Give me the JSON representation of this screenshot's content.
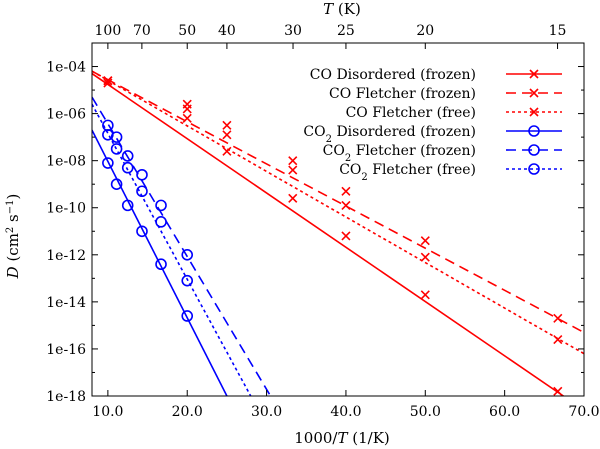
{
  "chart_data": {
    "type": "line",
    "xlabel": "1000/T (1/K)",
    "ylabel": "D (cm2 s-1)",
    "top_axis_label": "T (K)",
    "x_ticks": [
      "10.0",
      "20.0",
      "30.0",
      "40.0",
      "50.0",
      "60.0",
      "70.0"
    ],
    "x_tick_values": [
      10,
      20,
      30,
      40,
      50,
      60,
      70
    ],
    "top_ticks": [
      "100",
      "70",
      "50",
      "40",
      "30",
      "25",
      "20",
      "15"
    ],
    "top_tick_values": [
      100,
      70,
      50,
      40,
      30,
      25,
      20,
      15
    ],
    "y_ticks": [
      "1e-04",
      "1e-06",
      "1e-08",
      "1e-10",
      "1e-12",
      "1e-14",
      "1e-16",
      "1e-18"
    ],
    "y_tick_exponents": [
      -4,
      -6,
      -8,
      -10,
      -12,
      -14,
      -16,
      -18
    ],
    "xlim": [
      8,
      70
    ],
    "ylim_log10": [
      -18,
      -3
    ],
    "series": [
      {
        "name": "CO  Disordered (frozen)",
        "prefix": "CO",
        "sub": "",
        "rest": "  Disordered (frozen)",
        "color": "#ff0000",
        "marker": "x",
        "dash": "",
        "points": [
          [
            10,
            -4.7
          ],
          [
            20,
            -6.2
          ],
          [
            25,
            -7.6
          ],
          [
            33.3,
            -9.6
          ],
          [
            40,
            -11.2
          ],
          [
            50,
            -13.7
          ],
          [
            66.7,
            -17.8
          ]
        ]
      },
      {
        "name": "CO  Fletcher (frozen)",
        "prefix": "CO",
        "sub": "",
        "rest": "  Fletcher (frozen)",
        "color": "#ff0000",
        "marker": "x",
        "dash": "10,6",
        "points": [
          [
            10,
            -4.6
          ],
          [
            20,
            -5.6
          ],
          [
            25,
            -6.5
          ],
          [
            33.3,
            -8.0
          ],
          [
            40,
            -9.3
          ],
          [
            50,
            -11.4
          ],
          [
            66.7,
            -14.7
          ]
        ]
      },
      {
        "name": "CO  Fletcher (free)",
        "prefix": "CO",
        "sub": "",
        "rest": "  Fletcher (free)",
        "color": "#ff0000",
        "marker": "x",
        "dash": "3,3",
        "points": [
          [
            10,
            -4.6
          ],
          [
            20,
            -5.8
          ],
          [
            25,
            -6.9
          ],
          [
            33.3,
            -8.4
          ],
          [
            40,
            -9.9
          ],
          [
            50,
            -12.1
          ],
          [
            66.7,
            -15.6
          ]
        ]
      },
      {
        "name": "CO2 Disordered (frozen)",
        "prefix": "CO",
        "sub": "2",
        "rest": " Disordered (frozen)",
        "color": "#0000ff",
        "marker": "o",
        "dash": "",
        "points": [
          [
            10,
            -8.1
          ],
          [
            11.1,
            -9.0
          ],
          [
            12.5,
            -9.9
          ],
          [
            14.3,
            -11.0
          ],
          [
            16.7,
            -12.4
          ],
          [
            20,
            -14.6
          ]
        ]
      },
      {
        "name": "CO2 Fletcher (frozen)",
        "prefix": "CO",
        "sub": "2",
        "rest": " Fletcher (frozen)",
        "color": "#0000ff",
        "marker": "o",
        "dash": "10,6",
        "points": [
          [
            10,
            -6.5
          ],
          [
            11.1,
            -7.0
          ],
          [
            12.5,
            -7.8
          ],
          [
            14.3,
            -8.6
          ],
          [
            16.7,
            -9.9
          ],
          [
            20,
            -12.0
          ]
        ]
      },
      {
        "name": "CO2 Fletcher (free)",
        "prefix": "CO",
        "sub": "2",
        "rest": " Fletcher (free)",
        "color": "#0000ff",
        "marker": "o",
        "dash": "3,3",
        "points": [
          [
            10,
            -6.9
          ],
          [
            11.1,
            -7.5
          ],
          [
            12.5,
            -8.3
          ],
          [
            14.3,
            -9.3
          ],
          [
            16.7,
            -10.6
          ],
          [
            20,
            -13.1
          ]
        ]
      }
    ],
    "extrapolated_lines": [
      {
        "series": 0,
        "from": [
          8,
          -4.3
        ],
        "to": [
          70,
          -18.6
        ]
      },
      {
        "series": 1,
        "from": [
          8,
          -4.2
        ],
        "to": [
          70,
          -15.3
        ]
      },
      {
        "series": 2,
        "from": [
          8,
          -4.2
        ],
        "to": [
          70,
          -16.2
        ]
      },
      {
        "series": 3,
        "from": [
          8,
          -6.7
        ],
        "to": [
          25,
          -18.0
        ]
      },
      {
        "series": 4,
        "from": [
          8,
          -5.3
        ],
        "to": [
          30.5,
          -18.0
        ]
      },
      {
        "series": 5,
        "from": [
          8,
          -5.6
        ],
        "to": [
          28,
          -18.0
        ]
      }
    ]
  }
}
